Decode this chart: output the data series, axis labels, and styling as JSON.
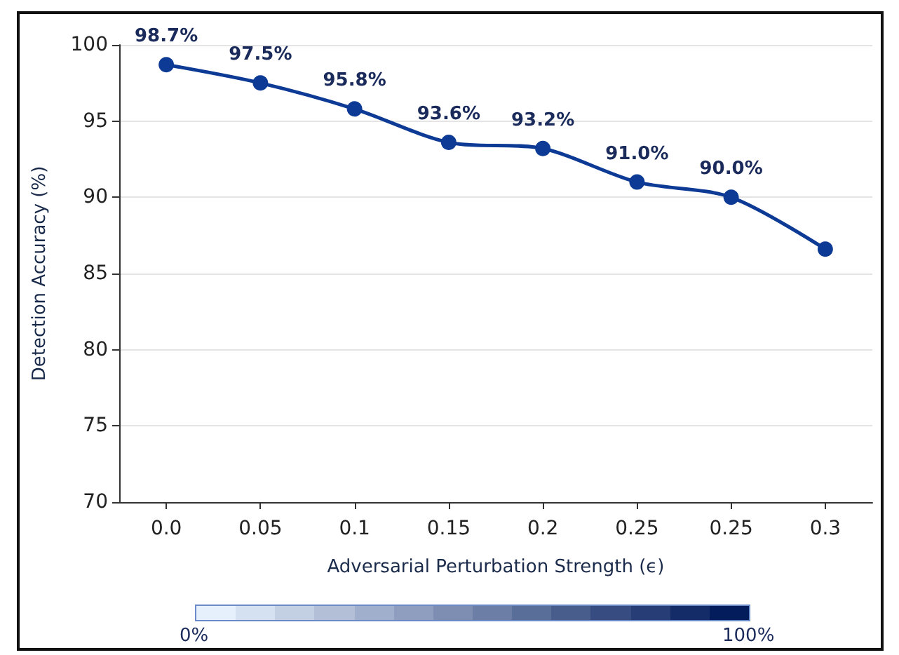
{
  "chart_data": {
    "type": "line",
    "xlabel": "Adversarial Perturbation Strength (ϵ)",
    "ylabel": "Detection Accuracy (%)",
    "categories": [
      "0.0",
      "0.05",
      "0.1",
      "0.15",
      "0.2",
      "0.25",
      "0.25",
      "0.3"
    ],
    "series": [
      {
        "color": "#0d3a94",
        "values": [
          98.7,
          97.5,
          95.8,
          93.6,
          93.2,
          91.0,
          90.0,
          86.6
        ],
        "value_labels": [
          "98.7%",
          "97.5%",
          "95.8%",
          "93.6%",
          "93.2%",
          "91.0%",
          "90.0%",
          null
        ]
      }
    ],
    "ylim": [
      70,
      100
    ],
    "yticks": [
      70,
      75,
      80,
      85,
      90,
      95,
      100
    ],
    "grid": "y",
    "marker": "circle",
    "line_style": "solid",
    "annotations": [
      "0%",
      "100%"
    ]
  }
}
